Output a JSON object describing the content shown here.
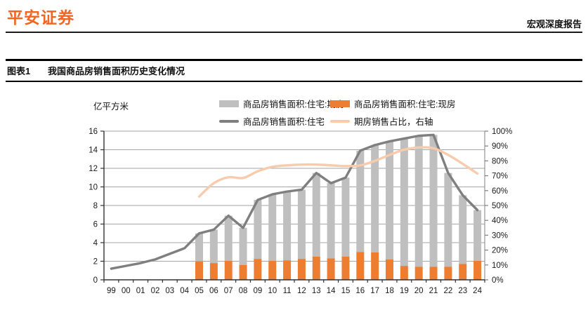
{
  "header": {
    "logo": "平安证券",
    "report_type": "宏观深度报告"
  },
  "figure": {
    "label": "图表1",
    "title": "我国商品房销售面积历史变化情况",
    "unit": "亿平方米"
  },
  "colors": {
    "brand_orange": "#F26522",
    "bar_gray": "#BFBFBF",
    "bar_orange": "#ED7D31",
    "line_dark": "#7F7F7F",
    "line_light": "#F8CBAD",
    "grid": "#A6A6A6",
    "axis_dark": "#333333",
    "axis_light": "#808080",
    "tick_text": "#1A1A1A"
  },
  "legend": {
    "items": [
      {
        "key": "qifang-bar",
        "label": "商品房销售面积:住宅:期房",
        "swatch": "bar",
        "color_key": "bar_gray"
      },
      {
        "key": "xianfang-bar",
        "label": "商品房销售面积:住宅:现房",
        "swatch": "bar",
        "color_key": "bar_orange"
      },
      {
        "key": "zhuzhai-line",
        "label": "商品房销售面积:住宅",
        "swatch": "line",
        "color_key": "line_dark"
      },
      {
        "key": "qifang-ratio",
        "label": "期房销售占比，右轴",
        "swatch": "line",
        "color_key": "line_light"
      }
    ]
  },
  "chart_data": {
    "type": "bar",
    "subtype": "stacked-bar-plus-lines-combo",
    "title": "我国商品房销售面积历史变化情况",
    "xlabel": "",
    "ylabel": "亿平方米",
    "grid": true,
    "legend_position": "top",
    "categories": [
      "99",
      "00",
      "01",
      "02",
      "03",
      "04",
      "05",
      "06",
      "07",
      "08",
      "09",
      "10",
      "11",
      "12",
      "13",
      "14",
      "15",
      "16",
      "17",
      "18",
      "19",
      "20",
      "21",
      "22",
      "23",
      "24"
    ],
    "left_axis": {
      "min": 0,
      "max": 16,
      "step": 2,
      "ticks": [
        0,
        2,
        4,
        6,
        8,
        10,
        12,
        14,
        16
      ]
    },
    "right_axis": {
      "min": 0,
      "max": 100,
      "step": 10,
      "ticks": [
        "0%",
        "10%",
        "20%",
        "30%",
        "40%",
        "50%",
        "60%",
        "70%",
        "80%",
        "90%",
        "100%"
      ]
    },
    "series": [
      {
        "name": "商品房销售面积:住宅:期房",
        "type": "bar",
        "stack_order": 2,
        "axis": "left",
        "color_key": "bar_gray",
        "values": [
          null,
          null,
          null,
          null,
          null,
          null,
          3.0,
          3.6,
          4.85,
          4.0,
          6.35,
          7.15,
          7.4,
          7.45,
          9.0,
          8.1,
          8.5,
          10.9,
          11.55,
          12.7,
          13.7,
          14.1,
          14.2,
          10.1,
          7.4,
          5.45
        ]
      },
      {
        "name": "商品房销售面积:住宅:现房",
        "type": "bar",
        "stack_order": 1,
        "axis": "left",
        "color_key": "bar_orange",
        "values": [
          null,
          null,
          null,
          null,
          null,
          null,
          2.0,
          1.8,
          2.05,
          1.6,
          2.25,
          2.05,
          2.1,
          2.25,
          2.5,
          2.3,
          2.5,
          3.0,
          2.95,
          2.2,
          1.5,
          1.4,
          1.4,
          1.4,
          1.7,
          2.05
        ]
      },
      {
        "name": "商品房销售面积:住宅",
        "type": "line",
        "axis": "left",
        "color_key": "line_dark",
        "smooth": false,
        "values": [
          1.2,
          1.5,
          1.8,
          2.2,
          2.8,
          3.4,
          5.0,
          5.4,
          6.9,
          5.6,
          8.6,
          9.2,
          9.5,
          9.7,
          11.5,
          10.4,
          11.0,
          13.9,
          14.5,
          14.9,
          15.2,
          15.5,
          15.6,
          11.5,
          9.1,
          7.5
        ]
      },
      {
        "name": "期房销售占比，右轴",
        "type": "line",
        "axis": "right",
        "color_key": "line_light",
        "smooth": true,
        "values": [
          null,
          null,
          null,
          null,
          null,
          null,
          56,
          65,
          69,
          68.5,
          73,
          76,
          77,
          77.5,
          77.5,
          77,
          76.5,
          77,
          80,
          84,
          87.5,
          89,
          88.5,
          84,
          78,
          71.5
        ]
      }
    ]
  }
}
